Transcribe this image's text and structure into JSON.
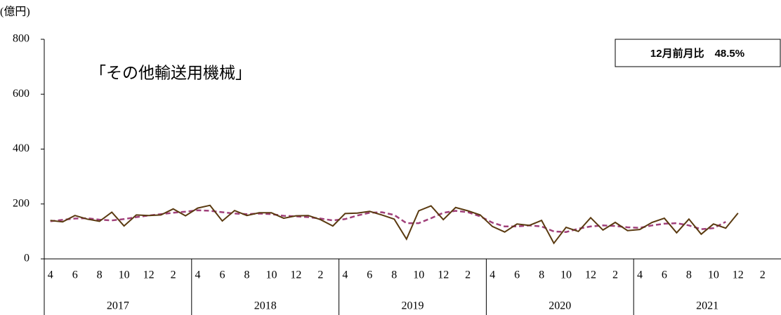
{
  "chart_data": {
    "type": "line",
    "unit_label": "(億円)",
    "annotation": "「その他輸送用機械」",
    "note": "12月前月比　48.5%",
    "categories": [
      "4",
      null,
      "6",
      null,
      "8",
      null,
      "10",
      null,
      "12",
      null,
      "2",
      null,
      "4",
      null,
      "6",
      null,
      "8",
      null,
      "10",
      null,
      "12",
      null,
      "2",
      null,
      "4",
      null,
      "6",
      null,
      "8",
      null,
      "10",
      null,
      "12",
      null,
      "2",
      null,
      "4",
      null,
      "6",
      null,
      "8",
      null,
      "10",
      null,
      "12",
      null,
      "2",
      null,
      "4",
      null,
      "6",
      null,
      "8",
      null,
      "10",
      null,
      "12",
      null,
      "2",
      null
    ],
    "years": [
      "2017",
      "2018",
      "2019",
      "2020",
      "2021"
    ],
    "ylim": [
      0,
      800
    ],
    "yticks": [
      0,
      200,
      400,
      600,
      800
    ],
    "series": [
      {
        "color": "#5a3a10",
        "dashed": false,
        "values": [
          140,
          135,
          158,
          145,
          137,
          170,
          120,
          160,
          158,
          160,
          182,
          157,
          185,
          195,
          138,
          176,
          158,
          168,
          168,
          148,
          157,
          158,
          143,
          120,
          165,
          167,
          173,
          160,
          145,
          72,
          175,
          193,
          143,
          187,
          175,
          160,
          118,
          98,
          127,
          122,
          140,
          57,
          115,
          100,
          150,
          105,
          133,
          103,
          107,
          133,
          148,
          95,
          145,
          90,
          127,
          112,
          167,
          null,
          null,
          null
        ]
      },
      {
        "color": "#a0407a",
        "dashed": true,
        "values": [
          137,
          142,
          147,
          148,
          143,
          140,
          145,
          152,
          158,
          163,
          168,
          172,
          177,
          175,
          170,
          165,
          163,
          165,
          163,
          157,
          155,
          152,
          147,
          140,
          145,
          158,
          168,
          170,
          160,
          130,
          130,
          148,
          168,
          175,
          170,
          155,
          132,
          118,
          118,
          122,
          118,
          100,
          98,
          110,
          118,
          122,
          120,
          115,
          113,
          122,
          128,
          130,
          122,
          108,
          112,
          135,
          null,
          null,
          null,
          null
        ]
      }
    ]
  }
}
